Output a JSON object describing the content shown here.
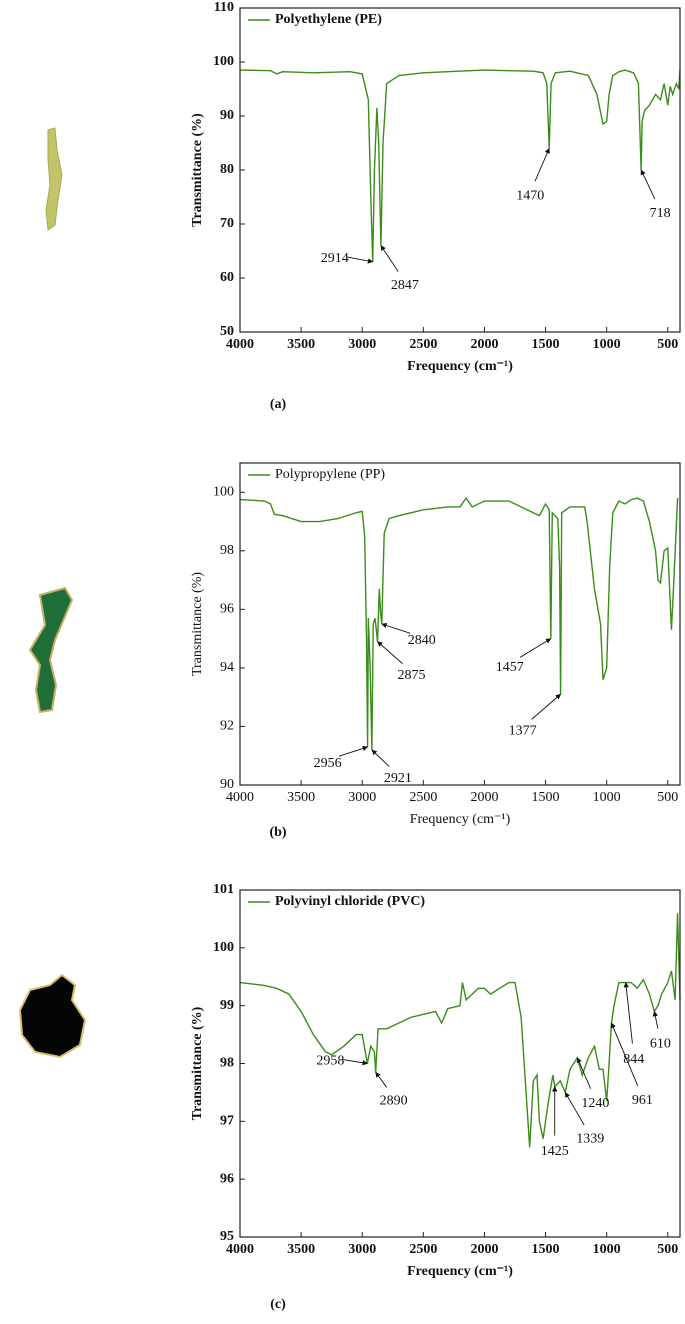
{
  "chart_data": [
    {
      "type": "line",
      "panel_label": "(a)",
      "xlabel": "Frequency (cm⁻¹)",
      "ylabel": "Transmittance (%)",
      "xlim": [
        4000,
        400
      ],
      "xticks": [
        4000,
        3500,
        3000,
        2500,
        2000,
        1500,
        1000,
        500
      ],
      "ylim": [
        50,
        110
      ],
      "yticks": [
        50,
        60,
        70,
        80,
        90,
        100,
        110
      ],
      "grid": false,
      "legend": "top-left",
      "x": [
        4000,
        3750,
        3700,
        3650,
        3400,
        3100,
        3000,
        2950,
        2930,
        2914,
        2900,
        2880,
        2865,
        2847,
        2830,
        2800,
        2700,
        2500,
        2300,
        2000,
        1800,
        1600,
        1520,
        1490,
        1470,
        1455,
        1420,
        1300,
        1150,
        1080,
        1030,
        1000,
        980,
        950,
        900,
        850,
        780,
        740,
        718,
        710,
        690,
        650,
        600,
        560,
        530,
        500,
        480,
        460,
        430,
        410,
        400
      ],
      "series": [
        {
          "name": "Polyethylene (PE)",
          "color": "#3a8c1a",
          "values": [
            98.5,
            98.4,
            97.8,
            98.2,
            98.0,
            98.2,
            97.8,
            93,
            75,
            63,
            80,
            91.5,
            85,
            66,
            85,
            96,
            97.5,
            98,
            98.2,
            98.5,
            98.4,
            98.3,
            98,
            96,
            84,
            96,
            98,
            98.3,
            97.5,
            94,
            88.5,
            89,
            94,
            97.5,
            98.2,
            98.5,
            98,
            96,
            80,
            89,
            91,
            92,
            94,
            93,
            96,
            92,
            95.5,
            94,
            96,
            95,
            98.5
          ]
        }
      ],
      "peaks": [
        {
          "x": 2914,
          "y": 63
        },
        {
          "x": 2847,
          "y": 66
        },
        {
          "x": 1470,
          "y": 84
        },
        {
          "x": 718,
          "y": 80
        }
      ]
    },
    {
      "type": "line",
      "panel_label": "(b)",
      "xlabel": "Frequency (cm⁻¹)",
      "ylabel": "Transmittance (%)",
      "xlim": [
        4000,
        400
      ],
      "xticks": [
        4000,
        3500,
        3000,
        2500,
        2000,
        1500,
        1000,
        500
      ],
      "ylim": [
        90,
        101
      ],
      "yticks": [
        90,
        92,
        94,
        96,
        98,
        100
      ],
      "grid": false,
      "legend": "top-left",
      "x": [
        4000,
        3800,
        3750,
        3720,
        3650,
        3500,
        3350,
        3200,
        3050,
        3000,
        2980,
        2965,
        2956,
        2950,
        2935,
        2921,
        2910,
        2895,
        2875,
        2860,
        2850,
        2840,
        2820,
        2780,
        2700,
        2500,
        2300,
        2200,
        2150,
        2100,
        2000,
        1800,
        1600,
        1550,
        1500,
        1470,
        1457,
        1445,
        1400,
        1385,
        1377,
        1368,
        1300,
        1180,
        1160,
        1100,
        1050,
        1030,
        1000,
        975,
        950,
        900,
        850,
        800,
        750,
        700,
        650,
        600,
        580,
        560,
        530,
        500,
        470,
        450,
        420
      ],
      "series": [
        {
          "name": "Polypropylene (PP)",
          "color": "#3a8c1a",
          "values": [
            99.75,
            99.7,
            99.6,
            99.25,
            99.2,
            99.0,
            99.0,
            99.1,
            99.3,
            99.35,
            98.5,
            95,
            91.3,
            95.7,
            94,
            91.2,
            95.5,
            95.7,
            94.9,
            96.7,
            95.9,
            95.5,
            98.6,
            99.1,
            99.2,
            99.4,
            99.5,
            99.5,
            99.8,
            99.5,
            99.7,
            99.7,
            99.3,
            99.2,
            99.6,
            99.4,
            95.0,
            99.3,
            99.1,
            97.5,
            93.1,
            99.3,
            99.5,
            99.5,
            99.0,
            96.7,
            95.5,
            93.6,
            94.0,
            97.5,
            99.3,
            99.7,
            99.6,
            99.75,
            99.8,
            99.7,
            99.0,
            98.0,
            97.0,
            96.9,
            98.0,
            98.1,
            95.3,
            97,
            99.8
          ]
        }
      ],
      "peaks": [
        {
          "x": 2956,
          "y": 91.3
        },
        {
          "x": 2921,
          "y": 91.2
        },
        {
          "x": 2875,
          "y": 94.9
        },
        {
          "x": 2840,
          "y": 95.5
        },
        {
          "x": 1457,
          "y": 95.0
        },
        {
          "x": 1377,
          "y": 93.1
        }
      ]
    },
    {
      "type": "line",
      "panel_label": "(c)",
      "xlabel": "Frequency (cm⁻¹)",
      "ylabel": "Transmittance (%)",
      "xlim": [
        4000,
        400
      ],
      "xticks": [
        4000,
        3500,
        3000,
        2500,
        2000,
        1500,
        1000,
        500
      ],
      "ylim": [
        95,
        101
      ],
      "yticks": [
        95,
        96,
        97,
        98,
        99,
        100,
        101
      ],
      "grid": false,
      "legend": "top-left",
      "x": [
        4000,
        3800,
        3700,
        3600,
        3500,
        3400,
        3300,
        3250,
        3150,
        3050,
        3000,
        2958,
        2930,
        2900,
        2890,
        2870,
        2800,
        2600,
        2400,
        2350,
        2300,
        2200,
        2180,
        2150,
        2050,
        2000,
        1950,
        1800,
        1750,
        1700,
        1650,
        1630,
        1600,
        1570,
        1550,
        1520,
        1480,
        1440,
        1425,
        1380,
        1339,
        1300,
        1240,
        1200,
        1150,
        1100,
        1060,
        1030,
        1000,
        980,
        961,
        940,
        900,
        844,
        800,
        750,
        700,
        650,
        610,
        580,
        550,
        500,
        470,
        440,
        420,
        400
      ],
      "series": [
        {
          "name": "Polyvinyl chloride (PVC)",
          "color": "#3a8c1a",
          "values": [
            99.4,
            99.35,
            99.3,
            99.2,
            98.9,
            98.5,
            98.2,
            98.15,
            98.3,
            98.5,
            98.5,
            98.0,
            98.3,
            98.2,
            97.85,
            98.6,
            98.6,
            98.8,
            98.9,
            98.7,
            98.95,
            99.0,
            99.4,
            99.1,
            99.3,
            99.3,
            99.2,
            99.4,
            99.4,
            98.8,
            97.2,
            96.55,
            97.7,
            97.8,
            97.0,
            96.7,
            97.3,
            97.8,
            97.6,
            97.7,
            97.5,
            97.9,
            98.1,
            97.8,
            98.1,
            98.3,
            97.9,
            97.9,
            97.35,
            98.0,
            98.7,
            99.0,
            99.4,
            99.4,
            99.4,
            99.3,
            99.45,
            99.2,
            98.9,
            99.0,
            99.2,
            99.4,
            99.6,
            99.1,
            100.6,
            99.1
          ]
        }
      ],
      "peaks": [
        {
          "x": 2958,
          "y": 98.0
        },
        {
          "x": 2890,
          "y": 97.85
        },
        {
          "x": 1425,
          "y": 97.6
        },
        {
          "x": 1339,
          "y": 97.5
        },
        {
          "x": 1240,
          "y": 98.1
        },
        {
          "x": 961,
          "y": 98.7
        },
        {
          "x": 844,
          "y": 99.4
        },
        {
          "x": 610,
          "y": 98.9
        }
      ]
    }
  ]
}
